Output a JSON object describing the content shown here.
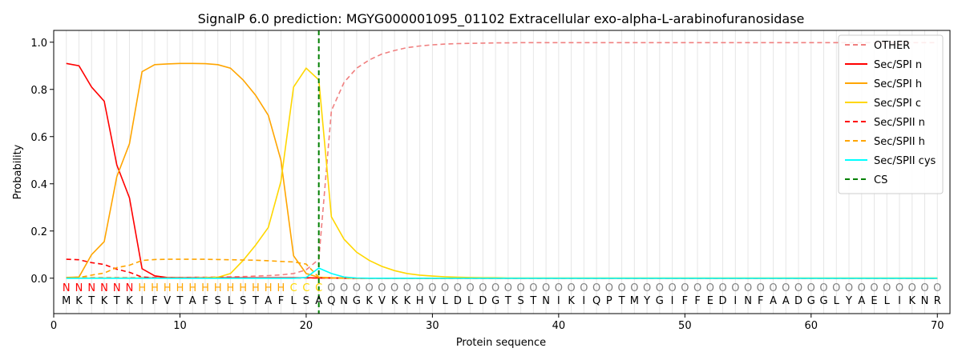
{
  "chart_data": {
    "type": "line",
    "title": "SignalP 6.0 prediction: MGYG000001095_01102 Extracellular exo-alpha-L-arabinofuranosidase",
    "xlabel": "Protein sequence",
    "ylabel": "Probability",
    "xlim": [
      0,
      71
    ],
    "ylim": [
      -0.15,
      1.05
    ],
    "xticks": [
      0,
      10,
      20,
      30,
      40,
      50,
      60,
      70
    ],
    "yticks": [
      0.0,
      0.2,
      0.4,
      0.6,
      0.8,
      1.0
    ],
    "grid": "vertical lines at each residue",
    "legend_position": "top-right",
    "sequence": [
      "M",
      "K",
      "T",
      "K",
      "T",
      "K",
      "I",
      "F",
      "V",
      "T",
      "A",
      "F",
      "S",
      "L",
      "S",
      "T",
      "A",
      "F",
      "L",
      "S",
      "A",
      "Q",
      "N",
      "G",
      "K",
      "V",
      "K",
      "K",
      "H",
      "V",
      "L",
      "D",
      "L",
      "D",
      "G",
      "T",
      "S",
      "T",
      "N",
      "I",
      "K",
      "I",
      "Q",
      "P",
      "T",
      "M",
      "Y",
      "G",
      "I",
      "F",
      "F",
      "E",
      "D",
      "I",
      "N",
      "F",
      "A",
      "A",
      "D",
      "G",
      "G",
      "L",
      "Y",
      "A",
      "E",
      "L",
      "I",
      "K",
      "N",
      "R"
    ],
    "region_labels": [
      "N",
      "N",
      "N",
      "N",
      "N",
      "N",
      "H",
      "H",
      "H",
      "H",
      "H",
      "H",
      "H",
      "H",
      "H",
      "H",
      "H",
      "H",
      "C",
      "C",
      "C",
      "O",
      "O",
      "O",
      "O",
      "O",
      "O",
      "O",
      "O",
      "O",
      "O",
      "O",
      "O",
      "O",
      "O",
      "O",
      "O",
      "O",
      "O",
      "O",
      "O",
      "O",
      "O",
      "O",
      "O",
      "O",
      "O",
      "O",
      "O",
      "O",
      "O",
      "O",
      "O",
      "O",
      "O",
      "O",
      "O",
      "O",
      "O",
      "O",
      "O",
      "O",
      "O",
      "O",
      "O",
      "O",
      "O",
      "O",
      "O",
      "O"
    ],
    "region_colors": {
      "N": "#ff0000",
      "H": "#ffa500",
      "C": "#ffd700",
      "O": "#808080"
    },
    "cleavage_site": 21,
    "series": [
      {
        "name": "OTHER",
        "color": "#f08080",
        "dash": true,
        "values": [
          0.003,
          0.003,
          0.003,
          0.003,
          0.003,
          0.003,
          0.003,
          0.003,
          0.003,
          0.003,
          0.004,
          0.004,
          0.005,
          0.006,
          0.007,
          0.009,
          0.011,
          0.014,
          0.02,
          0.035,
          0.08,
          0.71,
          0.83,
          0.89,
          0.925,
          0.95,
          0.965,
          0.977,
          0.984,
          0.989,
          0.992,
          0.994,
          0.995,
          0.996,
          0.997,
          0.997,
          0.998,
          0.998,
          0.998,
          0.998,
          0.998,
          0.998,
          0.998,
          0.998,
          0.998,
          0.998,
          0.998,
          0.998,
          0.998,
          0.998,
          0.998,
          0.998,
          0.998,
          0.998,
          0.998,
          0.998,
          0.998,
          0.998,
          0.998,
          0.998,
          0.998,
          0.998,
          0.998,
          0.998,
          0.998,
          0.998,
          0.998,
          0.998,
          0.998,
          0.998
        ]
      },
      {
        "name": "Sec/SPI n",
        "color": "#ff0000",
        "dash": false,
        "values": [
          0.91,
          0.9,
          0.81,
          0.75,
          0.48,
          0.34,
          0.04,
          0.01,
          0.003,
          0.002,
          0.002,
          0.002,
          0.002,
          0.002,
          0.002,
          0.002,
          0.002,
          0.002,
          0.002,
          0.002,
          0.001,
          0.001,
          0.001,
          0,
          0,
          0,
          0,
          0,
          0,
          0,
          0,
          0,
          0,
          0,
          0,
          0,
          0,
          0,
          0,
          0,
          0,
          0,
          0,
          0,
          0,
          0,
          0,
          0,
          0,
          0,
          0,
          0,
          0,
          0,
          0,
          0,
          0,
          0,
          0,
          0,
          0,
          0,
          0,
          0,
          0,
          0,
          0,
          0,
          0,
          0
        ]
      },
      {
        "name": "Sec/SPI h",
        "color": "#ffa500",
        "dash": false,
        "values": [
          0.003,
          0.005,
          0.1,
          0.155,
          0.43,
          0.57,
          0.875,
          0.905,
          0.908,
          0.91,
          0.91,
          0.909,
          0.905,
          0.89,
          0.84,
          0.775,
          0.69,
          0.5,
          0.095,
          0.02,
          0.004,
          0.002,
          0.001,
          0,
          0,
          0,
          0,
          0,
          0,
          0,
          0,
          0,
          0,
          0,
          0,
          0,
          0,
          0,
          0,
          0,
          0,
          0,
          0,
          0,
          0,
          0,
          0,
          0,
          0,
          0,
          0,
          0,
          0,
          0,
          0,
          0,
          0,
          0,
          0,
          0,
          0,
          0,
          0,
          0,
          0,
          0,
          0,
          0,
          0,
          0
        ]
      },
      {
        "name": "Sec/SPI c",
        "color": "#ffd700",
        "dash": false,
        "values": [
          0.001,
          0.001,
          0.001,
          0.001,
          0.001,
          0.001,
          0.001,
          0.001,
          0.001,
          0.001,
          0.001,
          0.002,
          0.004,
          0.02,
          0.075,
          0.14,
          0.215,
          0.41,
          0.81,
          0.89,
          0.84,
          0.26,
          0.165,
          0.11,
          0.075,
          0.05,
          0.032,
          0.02,
          0.013,
          0.009,
          0.006,
          0.004,
          0.003,
          0.002,
          0.002,
          0.001,
          0.001,
          0.001,
          0.001,
          0.001,
          0.001,
          0.001,
          0.001,
          0.001,
          0.001,
          0.001,
          0.001,
          0.001,
          0.001,
          0.001,
          0.001,
          0.001,
          0.001,
          0.001,
          0.001,
          0.001,
          0.001,
          0.001,
          0.001,
          0.001,
          0.001,
          0.001,
          0.001,
          0.001,
          0.001,
          0.001,
          0.001,
          0.001,
          0.001,
          0.001
        ]
      },
      {
        "name": "Sec/SPII n",
        "color": "#ff0000",
        "dash": true,
        "values": [
          0.08,
          0.078,
          0.066,
          0.058,
          0.038,
          0.025,
          0.005,
          0.002,
          0.001,
          0.001,
          0.001,
          0.001,
          0.001,
          0.001,
          0.001,
          0.001,
          0.001,
          0.001,
          0.001,
          0.001,
          0.001,
          0.001,
          0,
          0,
          0,
          0,
          0,
          0,
          0,
          0,
          0,
          0,
          0,
          0,
          0,
          0,
          0,
          0,
          0,
          0,
          0,
          0,
          0,
          0,
          0,
          0,
          0,
          0,
          0,
          0,
          0,
          0,
          0,
          0,
          0,
          0,
          0,
          0,
          0,
          0,
          0,
          0,
          0,
          0,
          0,
          0,
          0,
          0,
          0,
          0
        ]
      },
      {
        "name": "Sec/SPII h",
        "color": "#ffa500",
        "dash": true,
        "values": [
          0.002,
          0.003,
          0.013,
          0.022,
          0.045,
          0.055,
          0.075,
          0.079,
          0.08,
          0.08,
          0.08,
          0.08,
          0.079,
          0.078,
          0.077,
          0.076,
          0.074,
          0.071,
          0.069,
          0.06,
          0.004,
          0.001,
          0,
          0,
          0,
          0,
          0,
          0,
          0,
          0,
          0,
          0,
          0,
          0,
          0,
          0,
          0,
          0,
          0,
          0,
          0,
          0,
          0,
          0,
          0,
          0,
          0,
          0,
          0,
          0,
          0,
          0,
          0,
          0,
          0,
          0,
          0,
          0,
          0,
          0,
          0,
          0,
          0,
          0,
          0,
          0,
          0,
          0,
          0,
          0
        ]
      },
      {
        "name": "Sec/SPII cys",
        "color": "#00ffff",
        "dash": false,
        "values": [
          0,
          0,
          0,
          0,
          0,
          0,
          0,
          0,
          0,
          0,
          0,
          0,
          0,
          0,
          0,
          0,
          0,
          0,
          0,
          0.003,
          0.043,
          0.02,
          0.005,
          0.001,
          0,
          0,
          0,
          0,
          0,
          0,
          0,
          0,
          0,
          0,
          0,
          0,
          0,
          0,
          0,
          0,
          0,
          0,
          0,
          0,
          0,
          0,
          0,
          0,
          0,
          0,
          0,
          0,
          0,
          0,
          0,
          0,
          0,
          0,
          0,
          0,
          0,
          0,
          0,
          0,
          0,
          0,
          0,
          0,
          0,
          0
        ]
      },
      {
        "name": "CS",
        "color": "#008000",
        "dash": true,
        "vertical_at": 21
      }
    ]
  }
}
